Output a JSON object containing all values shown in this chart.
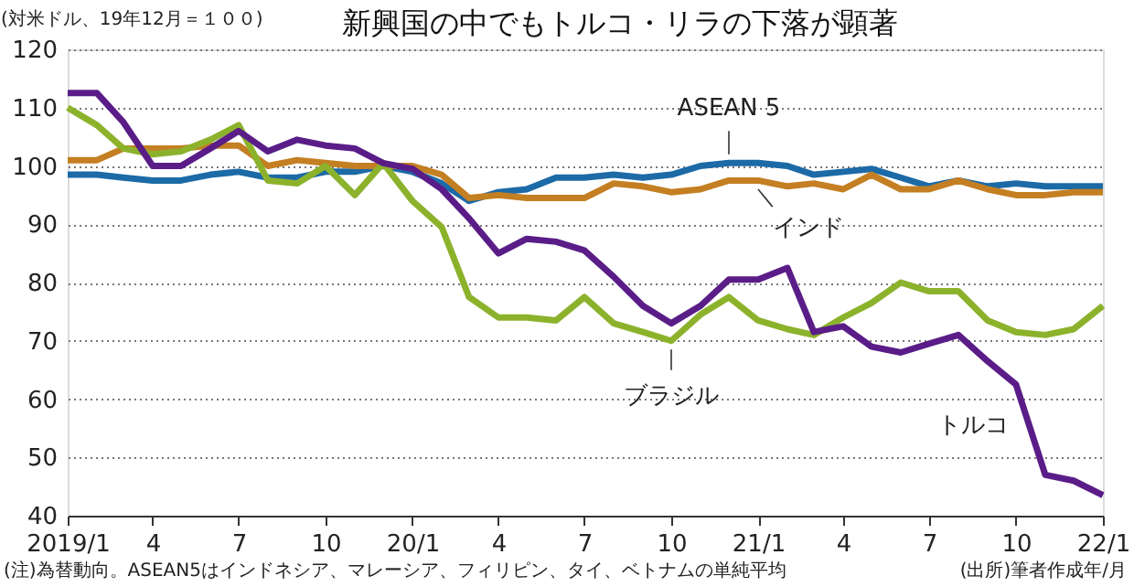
{
  "chart_data": {
    "type": "line",
    "title": "新興国の中でもトルコ・リラの下落が顕著",
    "ylabel": "(対米ドル、19年12月＝１００)",
    "x": [
      "2019-01",
      "2019-02",
      "2019-03",
      "2019-04",
      "2019-05",
      "2019-06",
      "2019-07",
      "2019-08",
      "2019-09",
      "2019-10",
      "2019-11",
      "2019-12",
      "2020-01",
      "2020-02",
      "2020-03",
      "2020-04",
      "2020-05",
      "2020-06",
      "2020-07",
      "2020-08",
      "2020-09",
      "2020-10",
      "2020-11",
      "2020-12",
      "2021-01",
      "2021-02",
      "2021-03",
      "2021-04",
      "2021-05",
      "2021-06",
      "2021-07",
      "2021-08",
      "2021-09",
      "2021-10",
      "2021-11",
      "2021-12",
      "2022-01"
    ],
    "series": [
      {
        "name": "ASEAN 5",
        "color": "#1c6aa6",
        "values": [
          98.5,
          98.5,
          98,
          97.5,
          97.5,
          98.5,
          99,
          98,
          98,
          99,
          99,
          100,
          99,
          97,
          94,
          95.5,
          96,
          98,
          98,
          98.5,
          98,
          98.5,
          100,
          100.5,
          100.5,
          100,
          98.5,
          99,
          99.5,
          98,
          96.5,
          97.5,
          96.5,
          97,
          96.5,
          96.5,
          96.5
        ]
      },
      {
        "name": "インド",
        "color": "#c47f22",
        "values": [
          101,
          101,
          103,
          103,
          103,
          103.5,
          103.5,
          100,
          101,
          100.5,
          100,
          100,
          100,
          98.5,
          94.5,
          95,
          94.5,
          94.5,
          94.5,
          97,
          96.5,
          95.5,
          96,
          97.5,
          97.5,
          96.5,
          97,
          96,
          98.5,
          96,
          96,
          97.5,
          96,
          95,
          95,
          95.5,
          95.5
        ]
      },
      {
        "name": "ブラジル",
        "color": "#8cb22c",
        "values": [
          110,
          107,
          103,
          102,
          102.5,
          104.5,
          107,
          97.5,
          97,
          100,
          95,
          100.5,
          94,
          89.5,
          77.5,
          74,
          74,
          73.5,
          77.5,
          73,
          71.5,
          70,
          74.5,
          77.5,
          73.5,
          72,
          71,
          74,
          76.5,
          80,
          78.5,
          78.5,
          73.5,
          71.5,
          71,
          72,
          76
        ]
      },
      {
        "name": "トルコ",
        "color": "#5a1d88",
        "values": [
          112.5,
          112.5,
          107.5,
          100,
          100,
          103,
          106,
          102.5,
          104.5,
          103.5,
          103,
          100.5,
          99.5,
          96,
          91,
          85,
          87.5,
          87,
          85.5,
          81,
          76,
          73,
          76,
          80.5,
          80.5,
          82.5,
          71.5,
          72.5,
          69,
          68,
          69.5,
          71,
          66.5,
          62.5,
          47,
          46,
          43.5
        ]
      }
    ],
    "xlim": [
      "2019-01",
      "2022-01"
    ],
    "xticks": [
      {
        "value": "2019-01",
        "label": "2019/1"
      },
      {
        "value": "2019-04",
        "label": "4"
      },
      {
        "value": "2019-07",
        "label": "7"
      },
      {
        "value": "2019-10",
        "label": "10"
      },
      {
        "value": "2020-01",
        "label": "20/1"
      },
      {
        "value": "2020-04",
        "label": "4"
      },
      {
        "value": "2020-07",
        "label": "7"
      },
      {
        "value": "2020-10",
        "label": "10"
      },
      {
        "value": "2021-01",
        "label": "21/1"
      },
      {
        "value": "2021-04",
        "label": "4"
      },
      {
        "value": "2021-07",
        "label": "7"
      },
      {
        "value": "2021-10",
        "label": "10"
      },
      {
        "value": "2022-01",
        "label": "22/1"
      }
    ],
    "ylim": [
      40,
      120
    ],
    "yticks": [
      40,
      50,
      60,
      70,
      80,
      90,
      100,
      110,
      120
    ],
    "grid": "y",
    "legend": false,
    "marker": "none",
    "line_style": "solid",
    "annotations": [
      "(注)為替動向。ASEAN5はインドネシア、マレーシア、フィリピン、タイ、ベトナムの単純平均",
      "(出所)筆者作成年/月"
    ]
  }
}
